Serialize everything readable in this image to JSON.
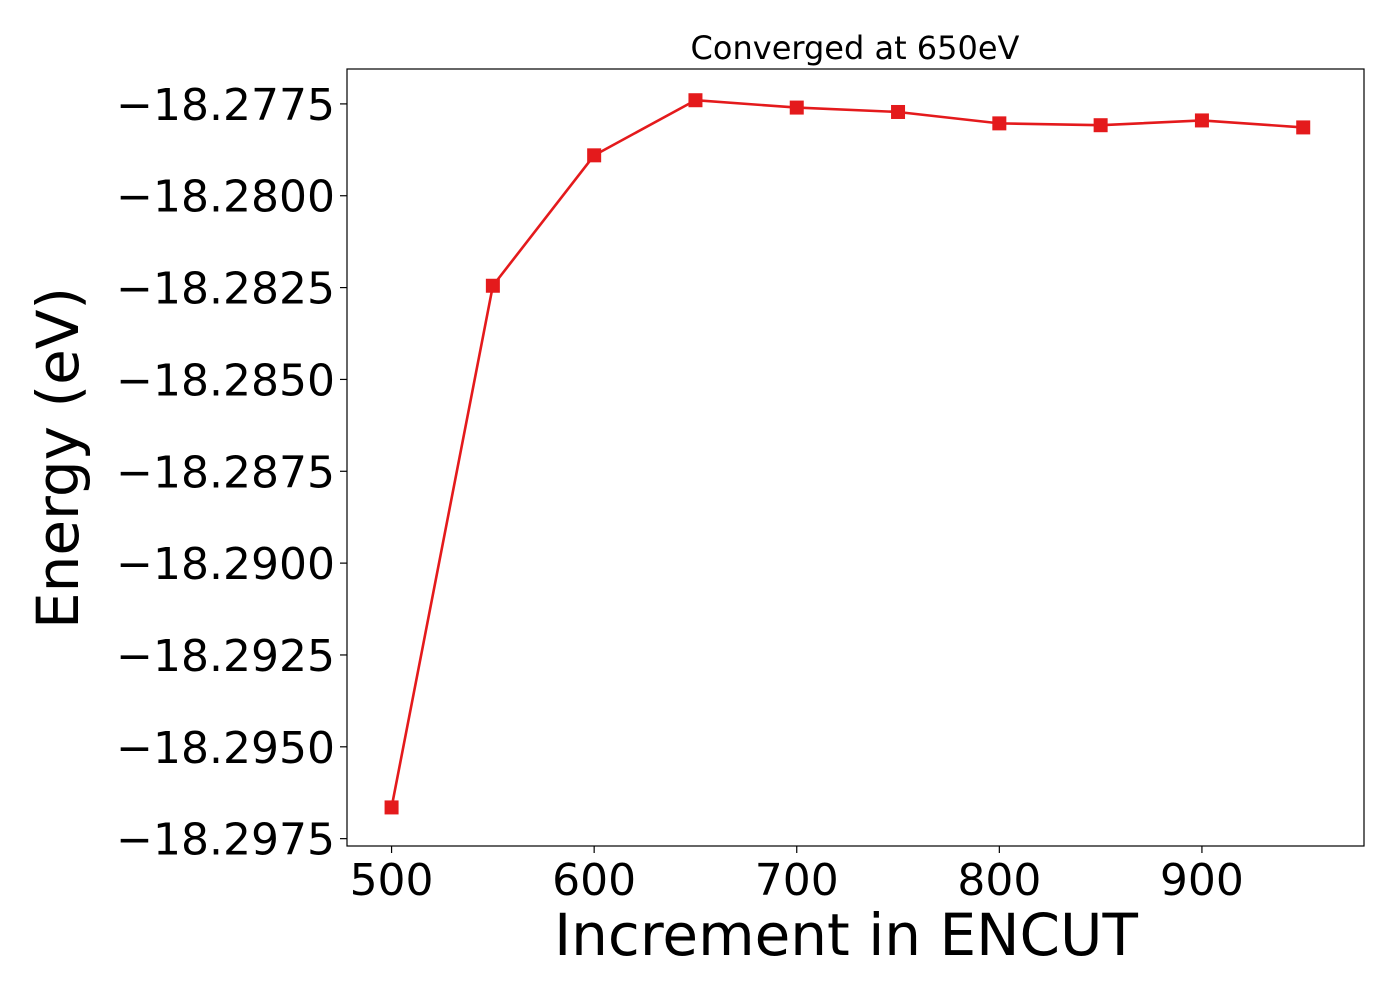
{
  "chart_data": {
    "type": "line",
    "title": "Converged at 650eV",
    "xlabel": "Increment in ENCUT",
    "ylabel": "Energy (eV)",
    "x": [
      500,
      550,
      600,
      650,
      700,
      750,
      800,
      850,
      900,
      950
    ],
    "series": [
      {
        "values": [
          -18.29665,
          -18.28245,
          -18.2789,
          -18.2774,
          -18.2776,
          -18.27772,
          -18.27803,
          -18.27808,
          -18.27795,
          -18.27814
        ],
        "color": "#e41a1c",
        "marker": "square"
      }
    ],
    "xlim": [
      478,
      980
    ],
    "ylim": [
      -18.2977,
      -18.27655
    ],
    "xticks": [
      500,
      600,
      700,
      800,
      900
    ],
    "xtick_labels": [
      "500",
      "600",
      "700",
      "800",
      "900"
    ],
    "yticks": [
      -18.2975,
      -18.295,
      -18.2925,
      -18.29,
      -18.2875,
      -18.285,
      -18.2825,
      -18.28,
      -18.2775
    ],
    "ytick_labels": [
      "−18.2975",
      "−18.2950",
      "−18.2925",
      "−18.2900",
      "−18.2875",
      "−18.2850",
      "−18.2825",
      "−18.2800",
      "−18.2775"
    ],
    "grid": false,
    "legend": "none"
  }
}
